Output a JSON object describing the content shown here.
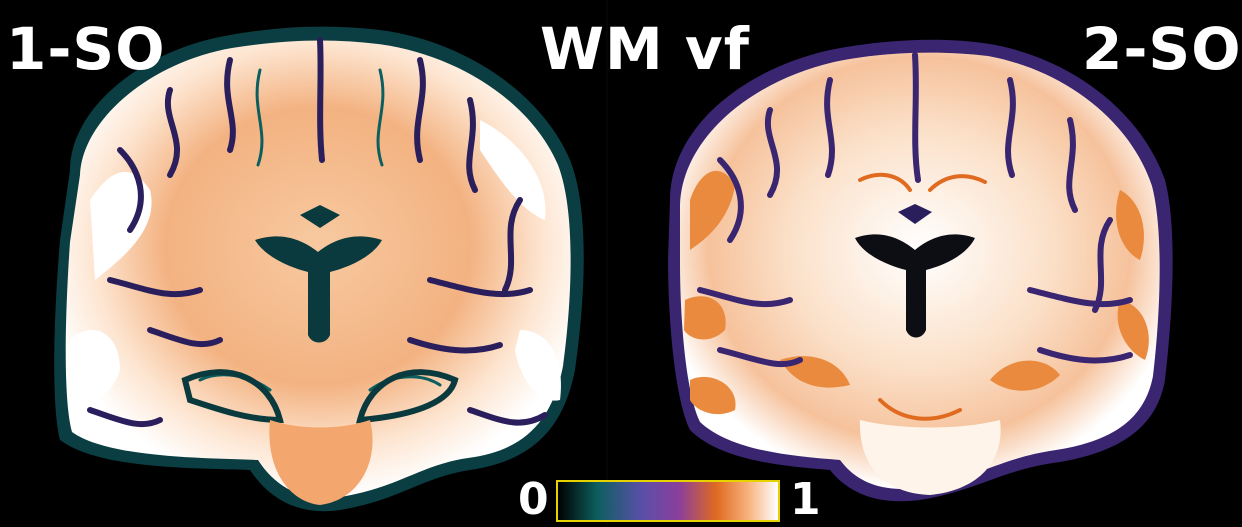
{
  "panels": {
    "left_label": "1-SO",
    "title": "WM vf",
    "right_label": "2-SO"
  },
  "colorbar": {
    "min_label": "0",
    "max_label": "1",
    "colors": [
      "#000000",
      "#0d5f5f",
      "#5a4fa8",
      "#8a3f9b",
      "#e06a20",
      "#f6b07a",
      "#ffffff"
    ]
  },
  "icons": [
    "brain-slice-left",
    "brain-slice-right"
  ]
}
